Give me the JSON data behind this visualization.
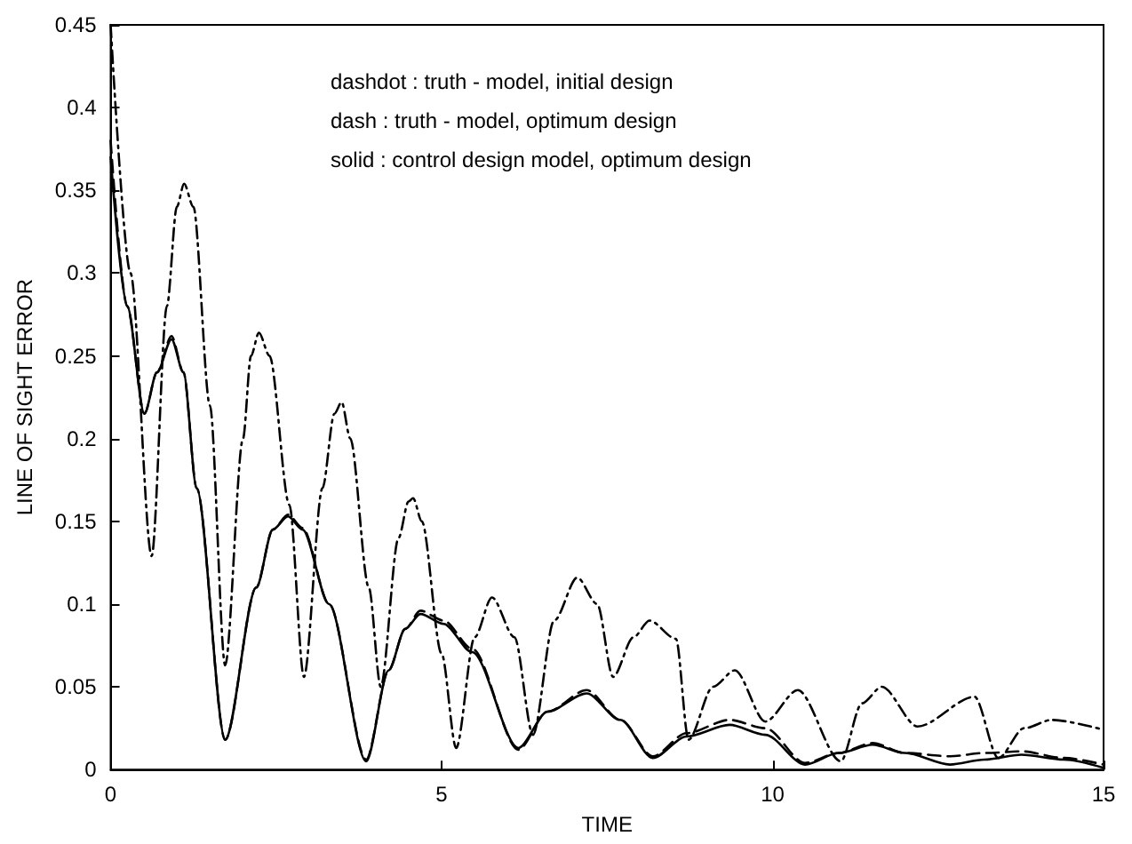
{
  "chart_data": {
    "type": "line",
    "xlabel": "TIME",
    "ylabel": "LINE OF SIGHT ERROR",
    "xlim": [
      0,
      15
    ],
    "xticks": [
      0,
      5,
      10,
      15
    ],
    "ylim": [
      0,
      0.45
    ],
    "yticks": [
      0,
      0.05,
      0.1,
      0.15,
      0.2,
      0.25,
      0.3,
      0.35,
      0.4,
      0.45
    ],
    "grid": false,
    "marker": "none",
    "annotations": [
      "dashdot : truth - model, initial design",
      "dash : truth - model, optimum design",
      "solid : control design model, optimum design"
    ],
    "series": [
      {
        "color": "#000000",
        "line_style": "dashdot",
        "x": [
          0,
          0.3,
          0.62,
          0.85,
          1.0,
          1.11,
          1.25,
          1.5,
          1.73,
          2.0,
          2.12,
          2.24,
          2.4,
          2.7,
          2.92,
          3.2,
          3.38,
          3.49,
          3.62,
          3.9,
          4.08,
          4.35,
          4.5,
          4.57,
          4.7,
          5.0,
          5.22,
          5.5,
          5.76,
          6.1,
          6.38,
          6.7,
          7.05,
          7.35,
          7.59,
          7.9,
          8.14,
          8.54,
          8.73,
          9.1,
          9.43,
          9.89,
          10.38,
          11.03,
          11.35,
          11.65,
          12.19,
          13.05,
          13.41,
          13.8,
          14.22,
          15
        ],
        "values": [
          0.45,
          0.3,
          0.129,
          0.28,
          0.34,
          0.354,
          0.34,
          0.22,
          0.063,
          0.2,
          0.25,
          0.264,
          0.25,
          0.16,
          0.056,
          0.17,
          0.215,
          0.222,
          0.2,
          0.11,
          0.05,
          0.14,
          0.162,
          0.164,
          0.15,
          0.07,
          0.013,
          0.08,
          0.104,
          0.08,
          0.021,
          0.09,
          0.116,
          0.1,
          0.056,
          0.08,
          0.09,
          0.079,
          0.018,
          0.05,
          0.06,
          0.029,
          0.048,
          0.005,
          0.04,
          0.05,
          0.026,
          0.044,
          0.007,
          0.025,
          0.03,
          0.024
        ]
      },
      {
        "color": "#000000",
        "line_style": "dashed",
        "x": [
          0,
          0.25,
          0.51,
          0.7,
          0.92,
          1.1,
          1.3,
          1.73,
          2.2,
          2.45,
          2.68,
          2.9,
          3.3,
          3.86,
          4.2,
          4.45,
          4.68,
          5.03,
          5.46,
          6.16,
          6.6,
          7.19,
          7.7,
          8.19,
          8.7,
          9.35,
          9.89,
          10.49,
          11.0,
          11.51,
          12.0,
          12.68,
          13.2,
          13.76,
          14.4,
          15
        ],
        "values": [
          0.38,
          0.28,
          0.215,
          0.24,
          0.262,
          0.24,
          0.17,
          0.018,
          0.11,
          0.145,
          0.154,
          0.146,
          0.1,
          0.006,
          0.06,
          0.085,
          0.096,
          0.09,
          0.073,
          0.012,
          0.035,
          0.048,
          0.03,
          0.008,
          0.022,
          0.03,
          0.025,
          0.004,
          0.01,
          0.016,
          0.01,
          0.008,
          0.01,
          0.011,
          0.007,
          0.003
        ]
      },
      {
        "color": "#000000",
        "line_style": "solid",
        "x": [
          0,
          0.25,
          0.51,
          0.7,
          0.92,
          1.1,
          1.3,
          1.73,
          2.2,
          2.45,
          2.68,
          2.9,
          3.3,
          3.86,
          4.2,
          4.45,
          4.68,
          5.03,
          5.46,
          6.16,
          6.6,
          7.19,
          7.7,
          8.19,
          8.7,
          9.35,
          9.89,
          10.49,
          11.0,
          11.51,
          12.0,
          12.68,
          13.2,
          13.76,
          14.4,
          15
        ],
        "values": [
          0.37,
          0.28,
          0.215,
          0.24,
          0.26,
          0.24,
          0.17,
          0.018,
          0.11,
          0.145,
          0.153,
          0.145,
          0.1,
          0.005,
          0.06,
          0.085,
          0.094,
          0.088,
          0.071,
          0.013,
          0.035,
          0.046,
          0.03,
          0.007,
          0.02,
          0.027,
          0.021,
          0.003,
          0.01,
          0.015,
          0.01,
          0.003,
          0.006,
          0.009,
          0.006,
          0.001
        ]
      }
    ]
  }
}
